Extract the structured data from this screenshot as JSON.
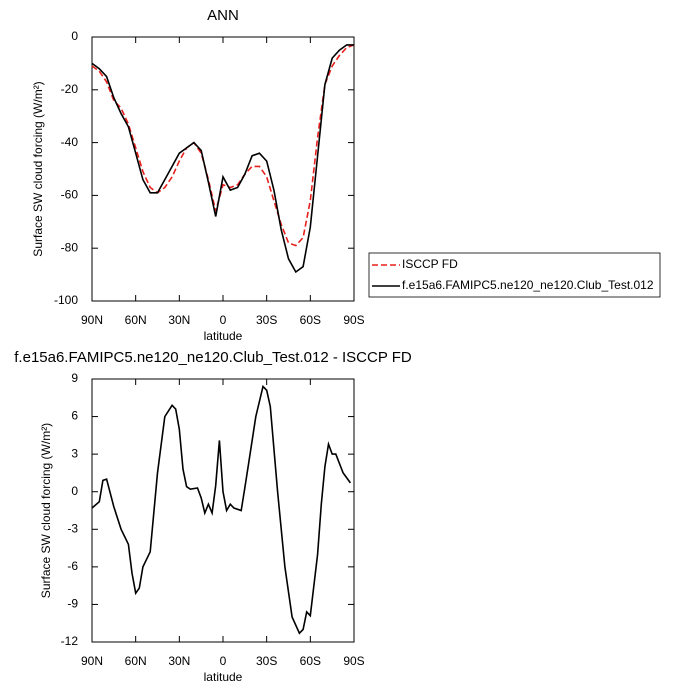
{
  "chart_data": [
    {
      "type": "line",
      "title": "ANN",
      "xlabel": "latitude",
      "ylabel": "Surface SW cloud forcing (W/m²)",
      "x": [
        90,
        85,
        80,
        75,
        70,
        65,
        60,
        55,
        50,
        45,
        40,
        35,
        30,
        25,
        20,
        15,
        10,
        5,
        0,
        -5,
        -10,
        -15,
        -20,
        -25,
        -30,
        -35,
        -40,
        -45,
        -50,
        -55,
        -60,
        -65,
        -70,
        -75,
        -80,
        -85,
        -90
      ],
      "series": [
        {
          "name": "ISCCP FD",
          "color": "#e8201c",
          "dash": "dashed",
          "values": [
            -11,
            -13,
            -17,
            -24,
            -27,
            -33,
            -42,
            -51,
            -57,
            -59,
            -57,
            -53,
            -47,
            -42,
            -40,
            -44,
            -54,
            -66,
            -56,
            -57,
            -56,
            -52,
            -49,
            -49,
            -53,
            -62,
            -71,
            -78,
            -79,
            -76,
            -62,
            -38,
            -18,
            -11,
            -7,
            -4,
            -3
          ]
        },
        {
          "name": "f.e15a6.FAMIPC5.ne120_ne120.Club_Test.012",
          "color": "#000000",
          "dash": "solid",
          "values": [
            -10,
            -12,
            -15,
            -23,
            -29,
            -34,
            -44,
            -54,
            -59,
            -59,
            -54,
            -49,
            -44,
            -42,
            -40,
            -43,
            -55,
            -68,
            -53,
            -58,
            -57,
            -52,
            -45,
            -44,
            -47,
            -58,
            -73,
            -84,
            -89,
            -87,
            -72,
            -45,
            -18,
            -8,
            -5,
            -3,
            -3
          ]
        }
      ],
      "xlim": [
        90,
        -90
      ],
      "xticks": [
        {
          "value": 90,
          "label": "90N"
        },
        {
          "value": 60,
          "label": "60N"
        },
        {
          "value": 30,
          "label": "30N"
        },
        0,
        {
          "value": -30,
          "label": "30S"
        },
        {
          "value": -60,
          "label": "60S"
        },
        {
          "value": -90,
          "label": "90S"
        }
      ],
      "ylim": [
        -100,
        0
      ],
      "yticks": [
        0,
        -20,
        -40,
        -60,
        -80,
        -100
      ],
      "legend": "right"
    },
    {
      "type": "line",
      "title": "f.e15a6.FAMIPC5.ne120_ne120.Club_Test.012 - ISCCP FD",
      "xlabel": "latitude",
      "ylabel": "Surface SW cloud forcing (W/m²)",
      "x": [
        90,
        85,
        82.5,
        80,
        75,
        70,
        65,
        62.5,
        60,
        57.5,
        55,
        50,
        45,
        40,
        35,
        32.5,
        30,
        27.5,
        25,
        22.5,
        17.5,
        15,
        12.5,
        10,
        7.5,
        5,
        2.5,
        0,
        -2.5,
        -5,
        -7.5,
        -12.5,
        -15,
        -17.5,
        -22.5,
        -27.5,
        -30,
        -32.5,
        -37.5,
        -42.5,
        -47.5,
        -52.5,
        -55,
        -57.5,
        -60,
        -65,
        -67.5,
        -70,
        -72.5,
        -75,
        -77.5,
        -82.5,
        -87.5
      ],
      "series": [
        {
          "color": "#000000",
          "dash": "solid",
          "values": [
            -1.3,
            -0.8,
            0.9,
            1.0,
            -1.2,
            -3.0,
            -4.2,
            -6.5,
            -8.1,
            -7.7,
            -6.0,
            -4.8,
            1.5,
            6.0,
            6.9,
            6.6,
            5.0,
            1.8,
            0.4,
            0.2,
            0.3,
            -0.5,
            -1.7,
            -1.0,
            -1.7,
            0.5,
            4.1,
            0,
            -1.5,
            -1.0,
            -1.3,
            -1.5,
            0.3,
            2.2,
            6.0,
            8.4,
            8.1,
            6.8,
            0,
            -6,
            -10,
            -11.3,
            -11.0,
            -9.6,
            -9.9,
            -5,
            -1,
            2,
            3.8,
            3.0,
            3.0,
            1.5,
            0.7
          ]
        }
      ],
      "xlim": [
        90,
        -90
      ],
      "xticks": [
        {
          "value": 90,
          "label": "90N"
        },
        {
          "value": 60,
          "label": "60N"
        },
        {
          "value": 30,
          "label": "30N"
        },
        0,
        {
          "value": -30,
          "label": "30S"
        },
        {
          "value": -60,
          "label": "60S"
        },
        {
          "value": -90,
          "label": "90S"
        }
      ],
      "ylim": [
        -12,
        9
      ],
      "yticks": [
        9,
        6,
        3,
        0,
        -3,
        -6,
        -9,
        -12
      ]
    }
  ]
}
